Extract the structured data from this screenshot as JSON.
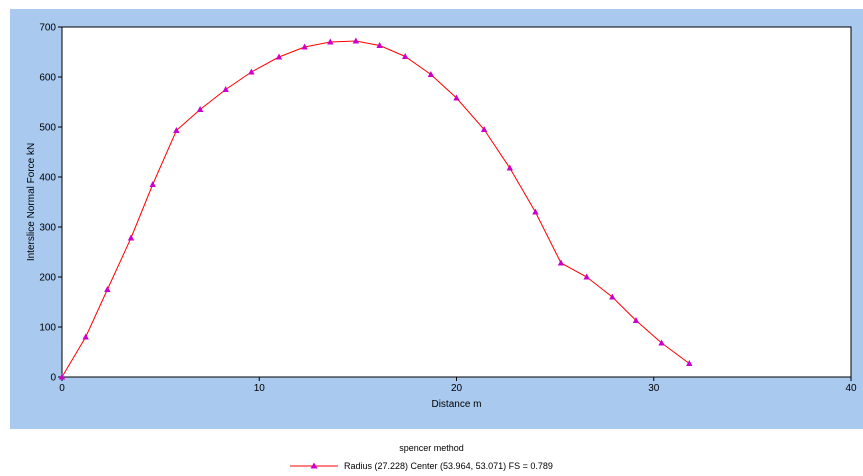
{
  "chart_data": {
    "type": "line",
    "xlabel": "Distance m",
    "ylabel": "Interslice Normal Force kN",
    "xlim": [
      0,
      40
    ],
    "ylim": [
      0,
      700
    ],
    "xticks": [
      "0",
      "10",
      "20",
      "30",
      "40"
    ],
    "yticks": [
      "0",
      "100",
      "200",
      "300",
      "400",
      "500",
      "600",
      "700"
    ],
    "grid": false,
    "legend_title": "spencer method",
    "legend_position": "bottom",
    "series": [
      {
        "name": "Radius (27.228)  Center (53.964, 53.071)  FS = 0.789",
        "color": "#ff0000",
        "marker_color": "#cc00cc",
        "marker": "triangle",
        "x": [
          0,
          1.2,
          2.3,
          3.5,
          4.6,
          5.8,
          7.0,
          8.3,
          9.6,
          11.0,
          12.3,
          13.6,
          14.9,
          16.1,
          17.4,
          18.7,
          20.0,
          21.4,
          22.7,
          24.0,
          25.3,
          26.6,
          27.9,
          29.1,
          30.4,
          31.8
        ],
        "y": [
          0,
          80,
          175,
          278,
          385,
          493,
          535,
          575,
          610,
          640,
          660,
          670,
          672,
          663,
          641,
          605,
          558,
          495,
          418,
          330,
          228,
          200,
          160,
          113,
          68,
          27
        ]
      }
    ]
  }
}
